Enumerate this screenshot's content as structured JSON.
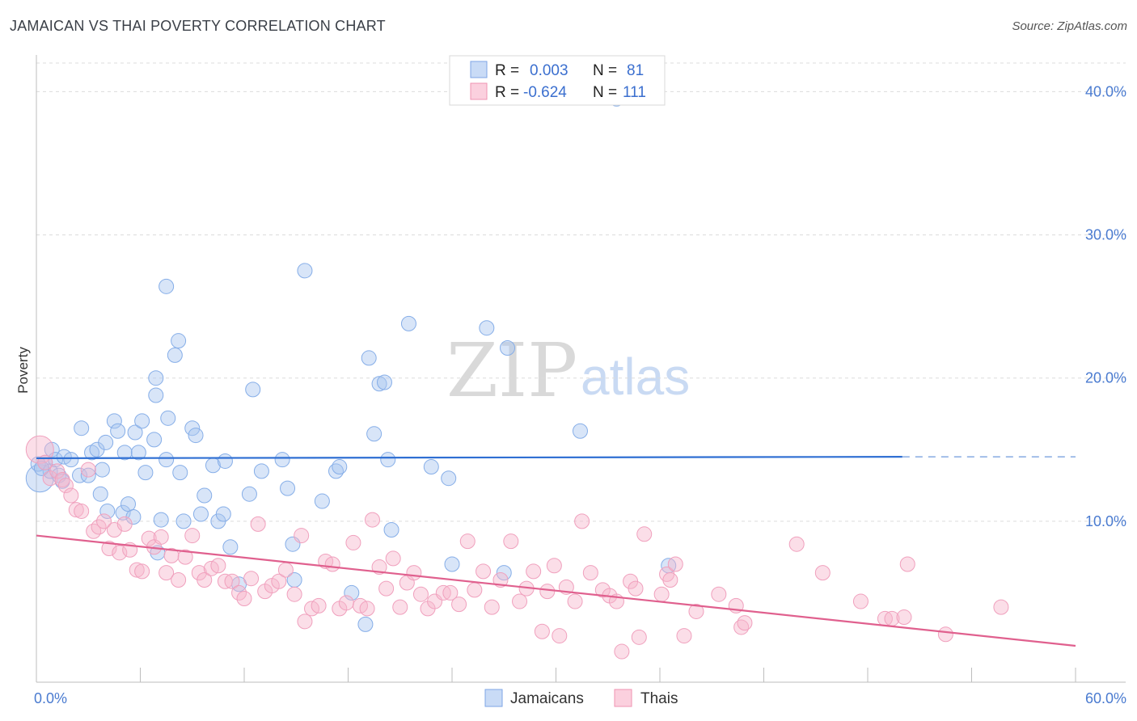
{
  "title": "JAMAICAN VS THAI POVERTY CORRELATION CHART",
  "source": "Source: ZipAtlas.com",
  "watermark": {
    "left": "ZIP",
    "right": "atlas"
  },
  "chart_data": {
    "type": "scatter",
    "xlabel": "",
    "ylabel": "Poverty",
    "xlim": [
      0,
      60
    ],
    "ylim": [
      0,
      42
    ],
    "x_tick_labels": [
      "0.0%",
      "60.0%"
    ],
    "y_ticks": [
      10,
      20,
      30,
      40
    ],
    "y_tick_labels": [
      "10.0%",
      "20.0%",
      "30.0%",
      "40.0%"
    ],
    "grid": true,
    "legend_placement": "top-center",
    "legend": {
      "row1": {
        "r_label": "R =",
        "r_value": "0.003",
        "n_label": "N =",
        "n_value": "81"
      },
      "row2": {
        "r_label": "R =",
        "r_value": "-0.624",
        "n_label": "N =",
        "n_value": "111"
      }
    },
    "series": [
      {
        "name": "Jamaicans",
        "color": "#8fb4ea",
        "line_color": "#2f6fd3",
        "trend": {
          "x0": 0,
          "y0": 14.4,
          "x1": 50,
          "y1": 14.5,
          "dashed_to": 60
        },
        "points": [
          [
            0.2,
            13.0
          ],
          [
            0.5,
            14.1
          ],
          [
            0.8,
            13.5
          ],
          [
            0.9,
            15.0
          ],
          [
            1.1,
            14.3
          ],
          [
            1.3,
            13.2
          ],
          [
            1.5,
            12.8
          ],
          [
            1.6,
            14.5
          ],
          [
            2.0,
            14.3
          ],
          [
            2.5,
            13.2
          ],
          [
            2.6,
            16.5
          ],
          [
            3.0,
            13.2
          ],
          [
            3.2,
            14.8
          ],
          [
            3.5,
            15.0
          ],
          [
            3.7,
            11.9
          ],
          [
            3.8,
            13.6
          ],
          [
            4.0,
            15.5
          ],
          [
            4.1,
            10.7
          ],
          [
            4.5,
            17.0
          ],
          [
            4.7,
            16.3
          ],
          [
            5.0,
            10.6
          ],
          [
            5.1,
            14.8
          ],
          [
            5.3,
            11.2
          ],
          [
            5.6,
            10.3
          ],
          [
            5.7,
            16.2
          ],
          [
            5.9,
            14.8
          ],
          [
            6.1,
            17.0
          ],
          [
            6.3,
            13.4
          ],
          [
            6.8,
            15.7
          ],
          [
            6.9,
            18.8
          ],
          [
            7.0,
            7.8
          ],
          [
            7.2,
            10.1
          ],
          [
            7.5,
            14.3
          ],
          [
            7.6,
            17.2
          ],
          [
            8.0,
            21.6
          ],
          [
            8.3,
            13.4
          ],
          [
            8.5,
            10.0
          ],
          [
            9.0,
            16.5
          ],
          [
            9.2,
            16.0
          ],
          [
            9.5,
            10.5
          ],
          [
            9.7,
            11.8
          ],
          [
            10.2,
            13.9
          ],
          [
            10.5,
            10.0
          ],
          [
            10.8,
            10.5
          ],
          [
            10.9,
            14.2
          ],
          [
            11.2,
            8.2
          ],
          [
            12.3,
            11.9
          ],
          [
            12.5,
            19.2
          ],
          [
            13.0,
            13.5
          ],
          [
            14.2,
            14.3
          ],
          [
            14.5,
            12.3
          ],
          [
            14.8,
            8.4
          ],
          [
            15.5,
            27.5
          ],
          [
            16.5,
            11.4
          ],
          [
            17.3,
            13.5
          ],
          [
            17.5,
            13.8
          ],
          [
            18.2,
            5.0
          ],
          [
            19.0,
            2.8
          ],
          [
            19.2,
            21.4
          ],
          [
            19.5,
            16.1
          ],
          [
            19.8,
            19.6
          ],
          [
            20.1,
            19.7
          ],
          [
            20.3,
            14.3
          ],
          [
            20.5,
            9.4
          ],
          [
            21.5,
            23.8
          ],
          [
            22.8,
            13.8
          ],
          [
            23.8,
            13.0
          ],
          [
            24.0,
            7.0
          ],
          [
            26.0,
            23.5
          ],
          [
            27.0,
            6.4
          ],
          [
            27.2,
            22.1
          ],
          [
            31.4,
            16.3
          ],
          [
            33.5,
            39.5
          ],
          [
            36.5,
            6.9
          ],
          [
            7.5,
            26.4
          ],
          [
            8.2,
            22.6
          ],
          [
            6.9,
            20.0
          ],
          [
            0.1,
            14.0
          ],
          [
            0.3,
            13.7
          ],
          [
            14.9,
            5.9
          ],
          [
            11.7,
            5.6
          ]
        ]
      },
      {
        "name": "Thais",
        "color": "#f4a8c2",
        "line_color": "#e0608e",
        "trend": {
          "x0": 0,
          "y0": 9.0,
          "x1": 60,
          "y1": 1.3
        },
        "points": [
          [
            0.2,
            15.0
          ],
          [
            0.5,
            14.1
          ],
          [
            0.8,
            13.0
          ],
          [
            1.2,
            13.5
          ],
          [
            1.5,
            12.9
          ],
          [
            1.7,
            12.5
          ],
          [
            2.0,
            11.8
          ],
          [
            2.3,
            10.8
          ],
          [
            2.6,
            10.7
          ],
          [
            3.0,
            13.6
          ],
          [
            3.3,
            9.3
          ],
          [
            3.6,
            9.6
          ],
          [
            3.9,
            10.0
          ],
          [
            4.2,
            8.1
          ],
          [
            4.5,
            9.4
          ],
          [
            4.8,
            7.8
          ],
          [
            5.1,
            9.8
          ],
          [
            5.4,
            8.0
          ],
          [
            5.8,
            6.6
          ],
          [
            6.1,
            6.5
          ],
          [
            6.5,
            8.8
          ],
          [
            6.8,
            8.2
          ],
          [
            7.2,
            8.9
          ],
          [
            7.5,
            6.4
          ],
          [
            7.8,
            7.6
          ],
          [
            8.2,
            5.9
          ],
          [
            8.6,
            7.5
          ],
          [
            9.0,
            9.0
          ],
          [
            9.4,
            6.4
          ],
          [
            9.7,
            5.9
          ],
          [
            10.1,
            6.7
          ],
          [
            10.5,
            6.9
          ],
          [
            10.9,
            5.8
          ],
          [
            11.3,
            5.8
          ],
          [
            11.7,
            5.0
          ],
          [
            12.0,
            4.6
          ],
          [
            12.4,
            6.0
          ],
          [
            12.8,
            9.8
          ],
          [
            13.2,
            5.1
          ],
          [
            13.6,
            5.5
          ],
          [
            14.0,
            5.8
          ],
          [
            14.4,
            6.6
          ],
          [
            14.9,
            4.9
          ],
          [
            15.3,
            9.0
          ],
          [
            15.5,
            3.0
          ],
          [
            15.9,
            3.9
          ],
          [
            16.3,
            4.1
          ],
          [
            16.7,
            7.2
          ],
          [
            17.1,
            7.0
          ],
          [
            17.5,
            3.9
          ],
          [
            17.9,
            4.3
          ],
          [
            18.3,
            8.5
          ],
          [
            18.7,
            4.1
          ],
          [
            19.1,
            3.9
          ],
          [
            19.4,
            10.1
          ],
          [
            19.8,
            6.8
          ],
          [
            20.2,
            5.3
          ],
          [
            20.6,
            7.4
          ],
          [
            21.0,
            4.0
          ],
          [
            21.4,
            5.7
          ],
          [
            21.8,
            6.4
          ],
          [
            22.2,
            4.9
          ],
          [
            22.6,
            3.9
          ],
          [
            23.0,
            4.4
          ],
          [
            23.5,
            5.0
          ],
          [
            23.9,
            5.0
          ],
          [
            24.4,
            4.2
          ],
          [
            24.9,
            8.6
          ],
          [
            25.3,
            5.2
          ],
          [
            25.8,
            6.5
          ],
          [
            26.3,
            4.0
          ],
          [
            26.8,
            5.9
          ],
          [
            27.4,
            8.6
          ],
          [
            27.9,
            4.4
          ],
          [
            28.3,
            5.3
          ],
          [
            28.7,
            6.5
          ],
          [
            29.2,
            2.3
          ],
          [
            29.5,
            5.1
          ],
          [
            29.9,
            6.9
          ],
          [
            30.2,
            2.0
          ],
          [
            30.6,
            5.4
          ],
          [
            31.1,
            4.4
          ],
          [
            31.5,
            10.0
          ],
          [
            32.0,
            6.4
          ],
          [
            32.7,
            5.2
          ],
          [
            33.1,
            4.8
          ],
          [
            33.5,
            4.4
          ],
          [
            33.8,
            0.9
          ],
          [
            34.3,
            5.8
          ],
          [
            34.6,
            5.3
          ],
          [
            34.8,
            1.9
          ],
          [
            35.1,
            9.1
          ],
          [
            36.1,
            4.9
          ],
          [
            36.4,
            6.3
          ],
          [
            36.6,
            5.9
          ],
          [
            36.9,
            7.0
          ],
          [
            37.4,
            2.0
          ],
          [
            38.1,
            3.7
          ],
          [
            39.4,
            4.9
          ],
          [
            40.4,
            4.1
          ],
          [
            40.7,
            2.6
          ],
          [
            40.9,
            2.9
          ],
          [
            43.9,
            8.4
          ],
          [
            45.4,
            6.4
          ],
          [
            47.6,
            4.4
          ],
          [
            49.0,
            3.2
          ],
          [
            49.4,
            3.2
          ],
          [
            50.1,
            3.3
          ],
          [
            50.3,
            7.0
          ],
          [
            52.5,
            2.1
          ],
          [
            55.7,
            4.0
          ]
        ]
      }
    ]
  }
}
